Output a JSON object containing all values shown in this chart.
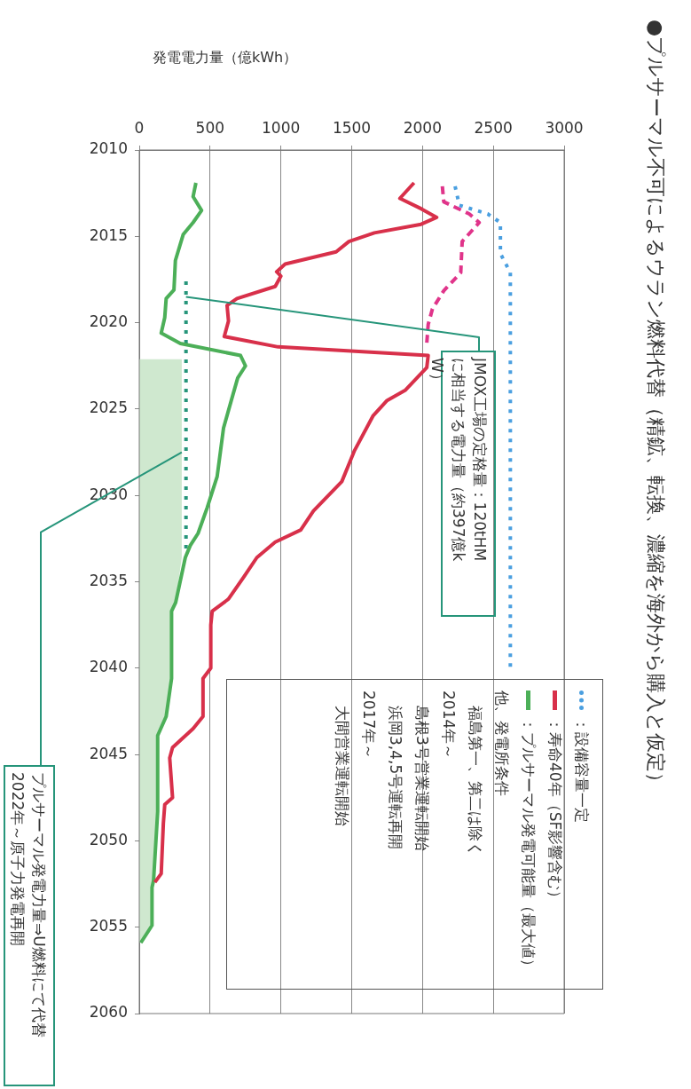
{
  "chart_data": {
    "type": "line",
    "orientation": "horizontal",
    "title": "●プルサーマル不可によるウラン燃料代替（精鉱、転換、濃縮を海外から購入と仮定）",
    "xlabel": "発電電力量（億kWh）",
    "xlim": [
      0,
      3000
    ],
    "xticks": [
      0,
      500,
      1000,
      1500,
      2000,
      2500,
      3000
    ],
    "ylim": [
      2060,
      2010
    ],
    "yticks": [
      2010,
      2015,
      2020,
      2025,
      2030,
      2035,
      2040,
      2045,
      2050,
      2055,
      2060
    ],
    "grid": "x",
    "legend": "bottom right",
    "marker": "none",
    "series": [
      {
        "type": "area",
        "color": "#cfe8cf",
        "x": [
          2022.1,
          2033.3,
          2033.6,
          2036.2,
          2036.7,
          2040.6,
          2042.8,
          2043.9,
          2048.3,
          2052.3,
          2052.7,
          2054.9,
          2055.9
        ],
        "values": [
          300,
          300,
          300,
          257,
          228,
          228,
          190,
          130,
          130,
          101,
          90,
          90,
          11
        ]
      },
      {
        "name": "：設備容量一定",
        "color": "#4a9fe0",
        "line_style": "dotted",
        "x": [
          2012.1,
          2013.2,
          2013.7,
          2014.2,
          2016.0,
          2017.1,
          2040.0
        ],
        "values": [
          2230,
          2260,
          2460,
          2550,
          2550,
          2620,
          2620
        ]
      },
      {
        "color": "#e0348a",
        "line_style": "dashed",
        "x": [
          2012.1,
          2013.0,
          2013.7,
          2014.2,
          2015.3,
          2017.1,
          2018.15,
          2019.2,
          2020.1,
          2021.2
        ],
        "values": [
          2140,
          2150,
          2330,
          2400,
          2280,
          2270,
          2150,
          2070,
          2040,
          2030
        ]
      },
      {
        "name": "：寿命40年（SF影響含む）",
        "color": "#d8304a",
        "line_style": "solid",
        "x": [
          2011.9,
          2012.8,
          2013.4,
          2013.9,
          2014.3,
          2014.8,
          2015.3,
          2015.9,
          2016.6,
          2017.05,
          2017.3,
          2017.9,
          2018.6,
          2019.0,
          2019.9,
          2020.8,
          2021.4,
          2021.9,
          2022.6,
          2023.9,
          2024.5,
          2025.4,
          2027.4,
          2029.2,
          2030.9,
          2032.0,
          2032.7,
          2033.6,
          2034.7,
          2036.0,
          2036.7,
          2037.5,
          2040.0,
          2040.6,
          2042.8,
          2043.5,
          2044.6,
          2045.2,
          2047.5,
          2047.9,
          2049.0,
          2051.9,
          2052.4
        ],
        "values": [
          1940,
          1840,
          1990,
          2100,
          1990,
          1660,
          1480,
          1390,
          1030,
          970,
          1000,
          960,
          690,
          620,
          630,
          600,
          980,
          2040,
          2030,
          1880,
          1750,
          1650,
          1520,
          1430,
          1230,
          1140,
          960,
          830,
          740,
          630,
          515,
          505,
          505,
          450,
          450,
          380,
          235,
          215,
          235,
          180,
          170,
          155,
          110
        ]
      },
      {
        "name": "：プルサーマル発電可能量（最大値）",
        "color": "#4caf58",
        "line_style": "solid",
        "x": [
          2011.9,
          2012.7,
          2013.5,
          2014.2,
          2014.9,
          2016.4,
          2018.1,
          2018.6,
          2019.7,
          2020.6,
          2021.2,
          2021.9,
          2022.5,
          2023.2,
          2024.5,
          2026.1,
          2028.9,
          2030.7,
          2032.2,
          2032.9,
          2033.6,
          2036.2,
          2036.7,
          2040.6,
          2042.8,
          2043.9,
          2048.3,
          2052.3,
          2052.7,
          2054.9,
          2055.9
        ],
        "values": [
          400,
          380,
          440,
          380,
          310,
          255,
          245,
          190,
          180,
          155,
          290,
          715,
          750,
          695,
          650,
          595,
          550,
          480,
          415,
          360,
          325,
          257,
          228,
          228,
          190,
          130,
          130,
          101,
          90,
          90,
          11
        ]
      },
      {
        "color": "#26957a",
        "line_style": "dotted",
        "x": [
          2017.6,
          2033.3
        ],
        "values": [
          330,
          330
        ]
      }
    ],
    "annotations": [
      {
        "text": "JMOX工場の定格量：120tHMに相当する電力量（約397億kW）",
        "x": 330,
        "y": 2018.5
      },
      {
        "text": "プルサーマル発電力量⇒U燃料にて代替2022年～原子力発電再開",
        "x": 300,
        "y": 2027.5
      },
      "他、発電所条件",
      "　福島第一、第二は除く",
      "2014年～",
      "　島根3号営業運転開始",
      "　浜岡3,4,5号運転再開",
      "2017年～",
      "　大間営業運転開始"
    ]
  }
}
